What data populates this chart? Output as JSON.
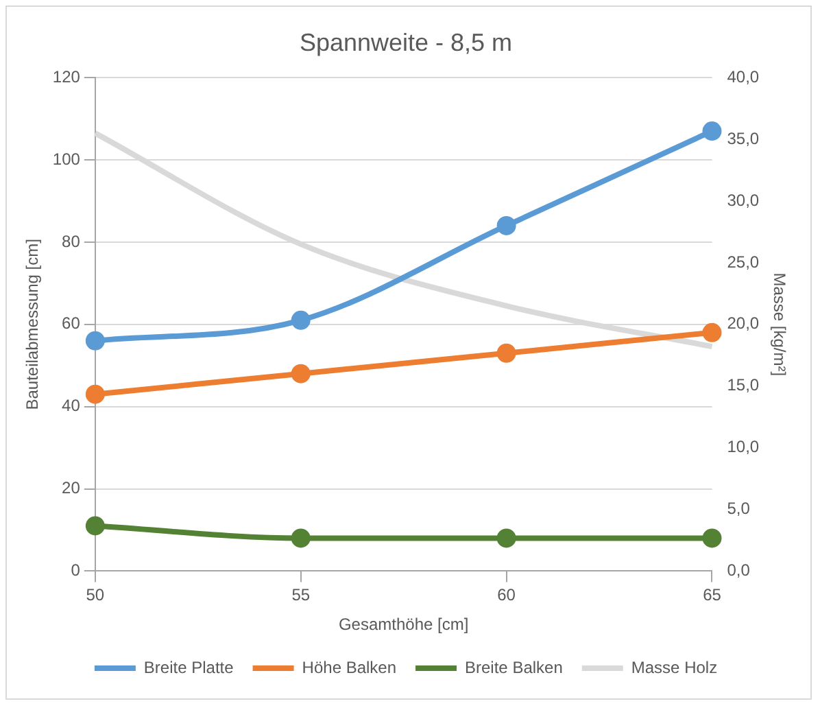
{
  "chart_data": {
    "type": "line",
    "title": "Spannweite - 8,5 m",
    "xlabel": "Gesamthöhe [cm]",
    "ylabel": "Bauteilabmessung [cm]",
    "y2label": "Masse [kg/m²]",
    "x": [
      50,
      55,
      60,
      65
    ],
    "xlim": [
      50,
      65
    ],
    "xticks": [
      50,
      55,
      60,
      65
    ],
    "ylim": [
      0,
      120
    ],
    "yticks": [
      0,
      20,
      40,
      60,
      80,
      100,
      120
    ],
    "y2lim": [
      0,
      40
    ],
    "y2ticks": [
      {
        "value": 0,
        "label": "0,0"
      },
      {
        "value": 5,
        "label": "5,0"
      },
      {
        "value": 10,
        "label": "10,0"
      },
      {
        "value": 15,
        "label": "15,0"
      },
      {
        "value": 20,
        "label": "20,0"
      },
      {
        "value": 25,
        "label": "25,0"
      },
      {
        "value": 30,
        "label": "30,0"
      },
      {
        "value": 35,
        "label": "35,0"
      },
      {
        "value": 40,
        "label": "40,0"
      }
    ],
    "grid": "y",
    "legend": "bottom",
    "marker": "circle",
    "series": [
      {
        "name": "Breite Platte",
        "color": "#5b9bd5",
        "values": [
          56,
          61,
          84,
          107
        ]
      },
      {
        "name": "Höhe Balken",
        "color": "#ed7d31",
        "values": [
          43,
          48,
          53,
          58
        ]
      },
      {
        "name": "Breite Balken",
        "color": "#548235",
        "values": [
          11,
          8,
          8,
          8
        ]
      },
      {
        "name": "Masse Holz",
        "color": "#d9d9d9",
        "values": [
          35.5,
          26.5,
          21.5,
          18.2
        ],
        "axis": "y2",
        "marker": "none"
      }
    ]
  }
}
